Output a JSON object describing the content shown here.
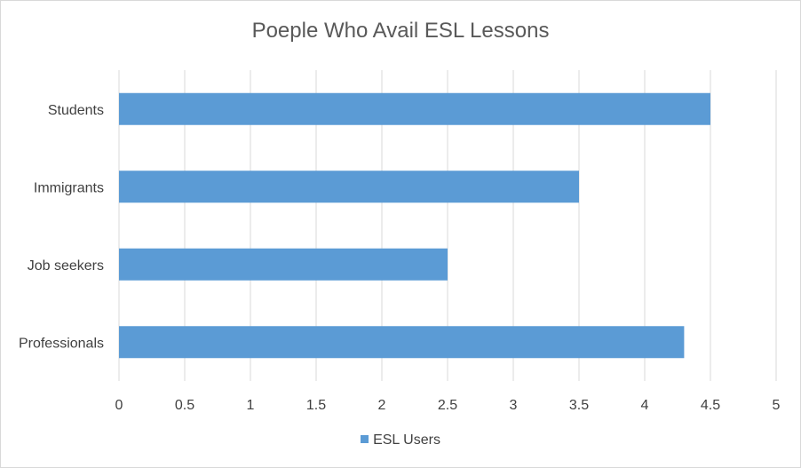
{
  "chart_data": {
    "type": "bar",
    "orientation": "horizontal",
    "title": "Poeple Who Avail ESL Lessons",
    "categories": [
      "Students",
      "Immigrants",
      "Job seekers",
      "Professionals"
    ],
    "series": [
      {
        "name": "ESL Users",
        "values": [
          4.5,
          3.5,
          2.5,
          4.3
        ],
        "color": "#5b9bd5"
      }
    ],
    "xticks": [
      "0",
      "0.5",
      "1",
      "1.5",
      "2",
      "2.5",
      "3",
      "3.5",
      "4",
      "4.5",
      "5"
    ],
    "xlim": [
      0,
      5
    ],
    "grid": true,
    "legend_position": "bottom"
  }
}
